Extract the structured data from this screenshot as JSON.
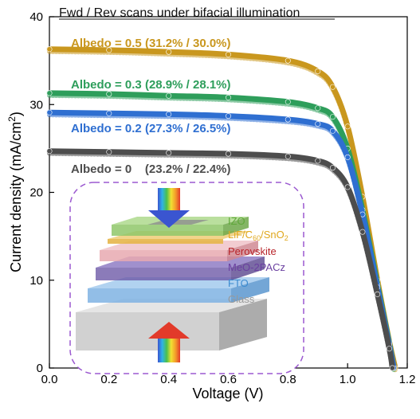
{
  "chart_data": {
    "type": "line",
    "title": "Fwd / Rev scans under bifacial illumination",
    "xlabel": "Voltage (V)",
    "ylabel": "Current density (mA/cm²)",
    "ylabel_parts": {
      "base": "Current density (mA/cm",
      "sup": "2",
      "end": ")"
    },
    "xlim": [
      0.0,
      1.2
    ],
    "ylim": [
      0,
      40
    ],
    "xticks": [
      "0.0",
      "0.2",
      "0.4",
      "0.6",
      "0.8",
      "1.0",
      "1.2"
    ],
    "yticks": [
      "0",
      "10",
      "20",
      "30",
      "40"
    ],
    "grid": false,
    "series": [
      {
        "name": "Albedo = 0.5 (31.2% / 30.0%)",
        "color": "#C9971E",
        "x": [
          0.0,
          0.2,
          0.4,
          0.6,
          0.8,
          0.9,
          0.95,
          1.0,
          1.05,
          1.1,
          1.14,
          1.16
        ],
        "y": [
          36.3,
          36.2,
          36.0,
          35.7,
          35.0,
          33.8,
          32.0,
          27.5,
          19.5,
          10.0,
          3.0,
          0.0
        ]
      },
      {
        "name": "Albedo = 0.3 (28.9% / 28.1%)",
        "color": "#2E9E5B",
        "x": [
          0.0,
          0.2,
          0.4,
          0.6,
          0.8,
          0.9,
          0.95,
          1.0,
          1.05,
          1.1,
          1.14,
          1.155
        ],
        "y": [
          31.3,
          31.2,
          31.0,
          30.8,
          30.3,
          29.6,
          28.6,
          25.0,
          18.0,
          9.5,
          2.8,
          0.0
        ]
      },
      {
        "name": "Albedo = 0.2 (27.3% / 26.5%)",
        "color": "#2F6FD1",
        "x": [
          0.0,
          0.2,
          0.4,
          0.6,
          0.8,
          0.9,
          0.95,
          1.0,
          1.05,
          1.1,
          1.14,
          1.155
        ],
        "y": [
          29.1,
          29.0,
          28.9,
          28.7,
          28.3,
          27.8,
          27.0,
          24.0,
          17.5,
          9.2,
          2.6,
          0.0
        ]
      },
      {
        "name": "Albedo = 0    (23.2% / 22.4%)",
        "color": "#4D4D4D",
        "x": [
          0.0,
          0.2,
          0.4,
          0.6,
          0.8,
          0.9,
          0.95,
          1.0,
          1.05,
          1.1,
          1.14,
          1.15
        ],
        "y": [
          24.7,
          24.6,
          24.5,
          24.4,
          24.1,
          23.6,
          22.8,
          20.6,
          15.5,
          8.4,
          2.2,
          0.0
        ]
      }
    ]
  },
  "inset": {
    "layers": [
      {
        "label": "IZO",
        "color": "#7DBE3C"
      },
      {
        "label": "LiF/C60/SnO2",
        "color": "#E0A81E"
      },
      {
        "label": "Perovskite",
        "color": "#B8242A"
      },
      {
        "label": "MeO-2PACz",
        "color": "#6A3FA0"
      },
      {
        "label": "FTO",
        "color": "#3C8BD0"
      },
      {
        "label": "Glass",
        "color": "#A8A8A8"
      }
    ],
    "lif_parts": {
      "a": "LiF/C",
      "sub1": "60",
      "b": "/SnO",
      "sub2": "2"
    }
  }
}
